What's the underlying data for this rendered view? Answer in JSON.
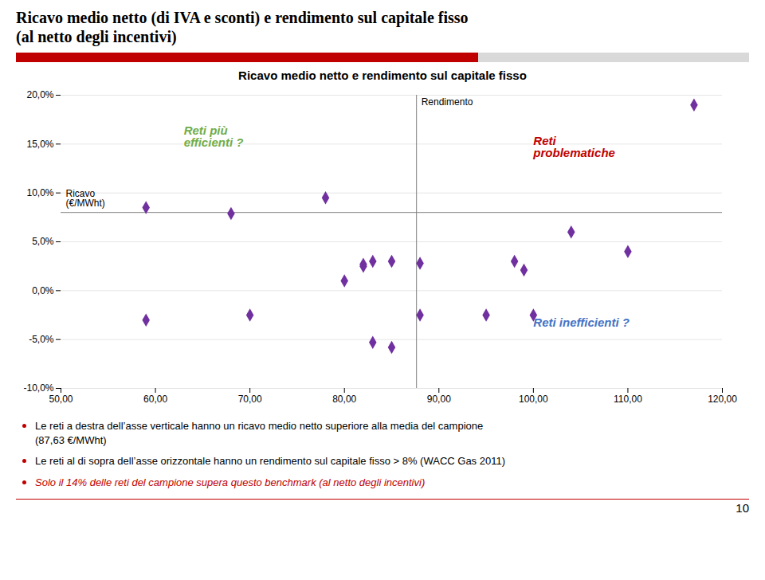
{
  "chart_data": {
    "type": "scatter",
    "suptitle": "Ricavo medio netto (di IVA e sconti) e rendimento sul capitale fisso\n(al netto degli incentivi)",
    "title_bar_colors": [
      "#C00000",
      "#808080"
    ],
    "title": "Ricavo medio netto e rendimento sul capitale fisso",
    "xlabel": "Ricavo\n(€/MWht)",
    "ylabel": "Rendimento",
    "x": [
      59,
      59,
      68,
      70,
      78,
      80,
      82,
      82,
      83,
      83,
      85,
      85,
      88,
      88,
      95,
      98,
      99,
      100,
      104,
      110,
      117
    ],
    "values": [
      0.085,
      -0.03,
      0.079,
      -0.025,
      0.095,
      0.01,
      0.025,
      0.027,
      0.03,
      -0.053,
      -0.058,
      0.03,
      0.028,
      -0.025,
      -0.025,
      0.03,
      0.021,
      -0.025,
      0.06,
      0.04,
      0.19
    ],
    "color": "#7030A0",
    "marker": "diamond",
    "xlim": [
      50,
      120
    ],
    "ylim": [
      -0.1,
      0.2
    ],
    "xticks": [
      {
        "value": 50,
        "label": "50,00"
      },
      {
        "value": 60,
        "label": "60,00"
      },
      {
        "value": 70,
        "label": "70,00"
      },
      {
        "value": 80,
        "label": "80,00"
      },
      {
        "value": 90,
        "label": "90,00"
      },
      {
        "value": 100,
        "label": "100,00"
      },
      {
        "value": 110,
        "label": "110,00"
      },
      {
        "value": 120,
        "label": "120,00"
      }
    ],
    "yticks": [
      {
        "value": -0.1,
        "label": "-10,0%"
      },
      {
        "value": -0.05,
        "label": "-5,0%"
      },
      {
        "value": 0,
        "label": "0,0%"
      },
      {
        "value": 0.05,
        "label": "5,0%"
      },
      {
        "value": 0.1,
        "label": "10,0%"
      },
      {
        "value": 0.15,
        "label": "15,0%"
      },
      {
        "value": 0.2,
        "label": "20,0%"
      }
    ],
    "grid": true,
    "reference_lines": {
      "x": 87.63,
      "y": 0.08,
      "color": "#808080"
    },
    "annotations": [
      {
        "text": "Reti più\nefficienti ?",
        "x": 63,
        "y": 0.168,
        "color": "#70AD47"
      },
      {
        "text": "Reti\nproblematiche",
        "x": 100,
        "y": 0.158,
        "color": "#C00000"
      },
      {
        "text": "Reti inefficienti ?",
        "x": 100,
        "y": -0.028,
        "color": "#4472C4"
      }
    ],
    "bullet_color": "#C00000",
    "notes": [
      {
        "text": "Le reti a destra dell’asse verticale hanno un ricavo medio netto superiore alla media del campione\n(87,63 €/MWht)"
      },
      {
        "text": "Le reti al di sopra dell’asse orizzontale hanno un rendimento sul capitale fisso > 8% (WACC Gas 2011)"
      },
      {
        "text": "Solo il 14% delle reti del campione supera questo benchmark (al netto degli incentivi)",
        "color": "#C00000"
      }
    ],
    "page_number": "10"
  }
}
